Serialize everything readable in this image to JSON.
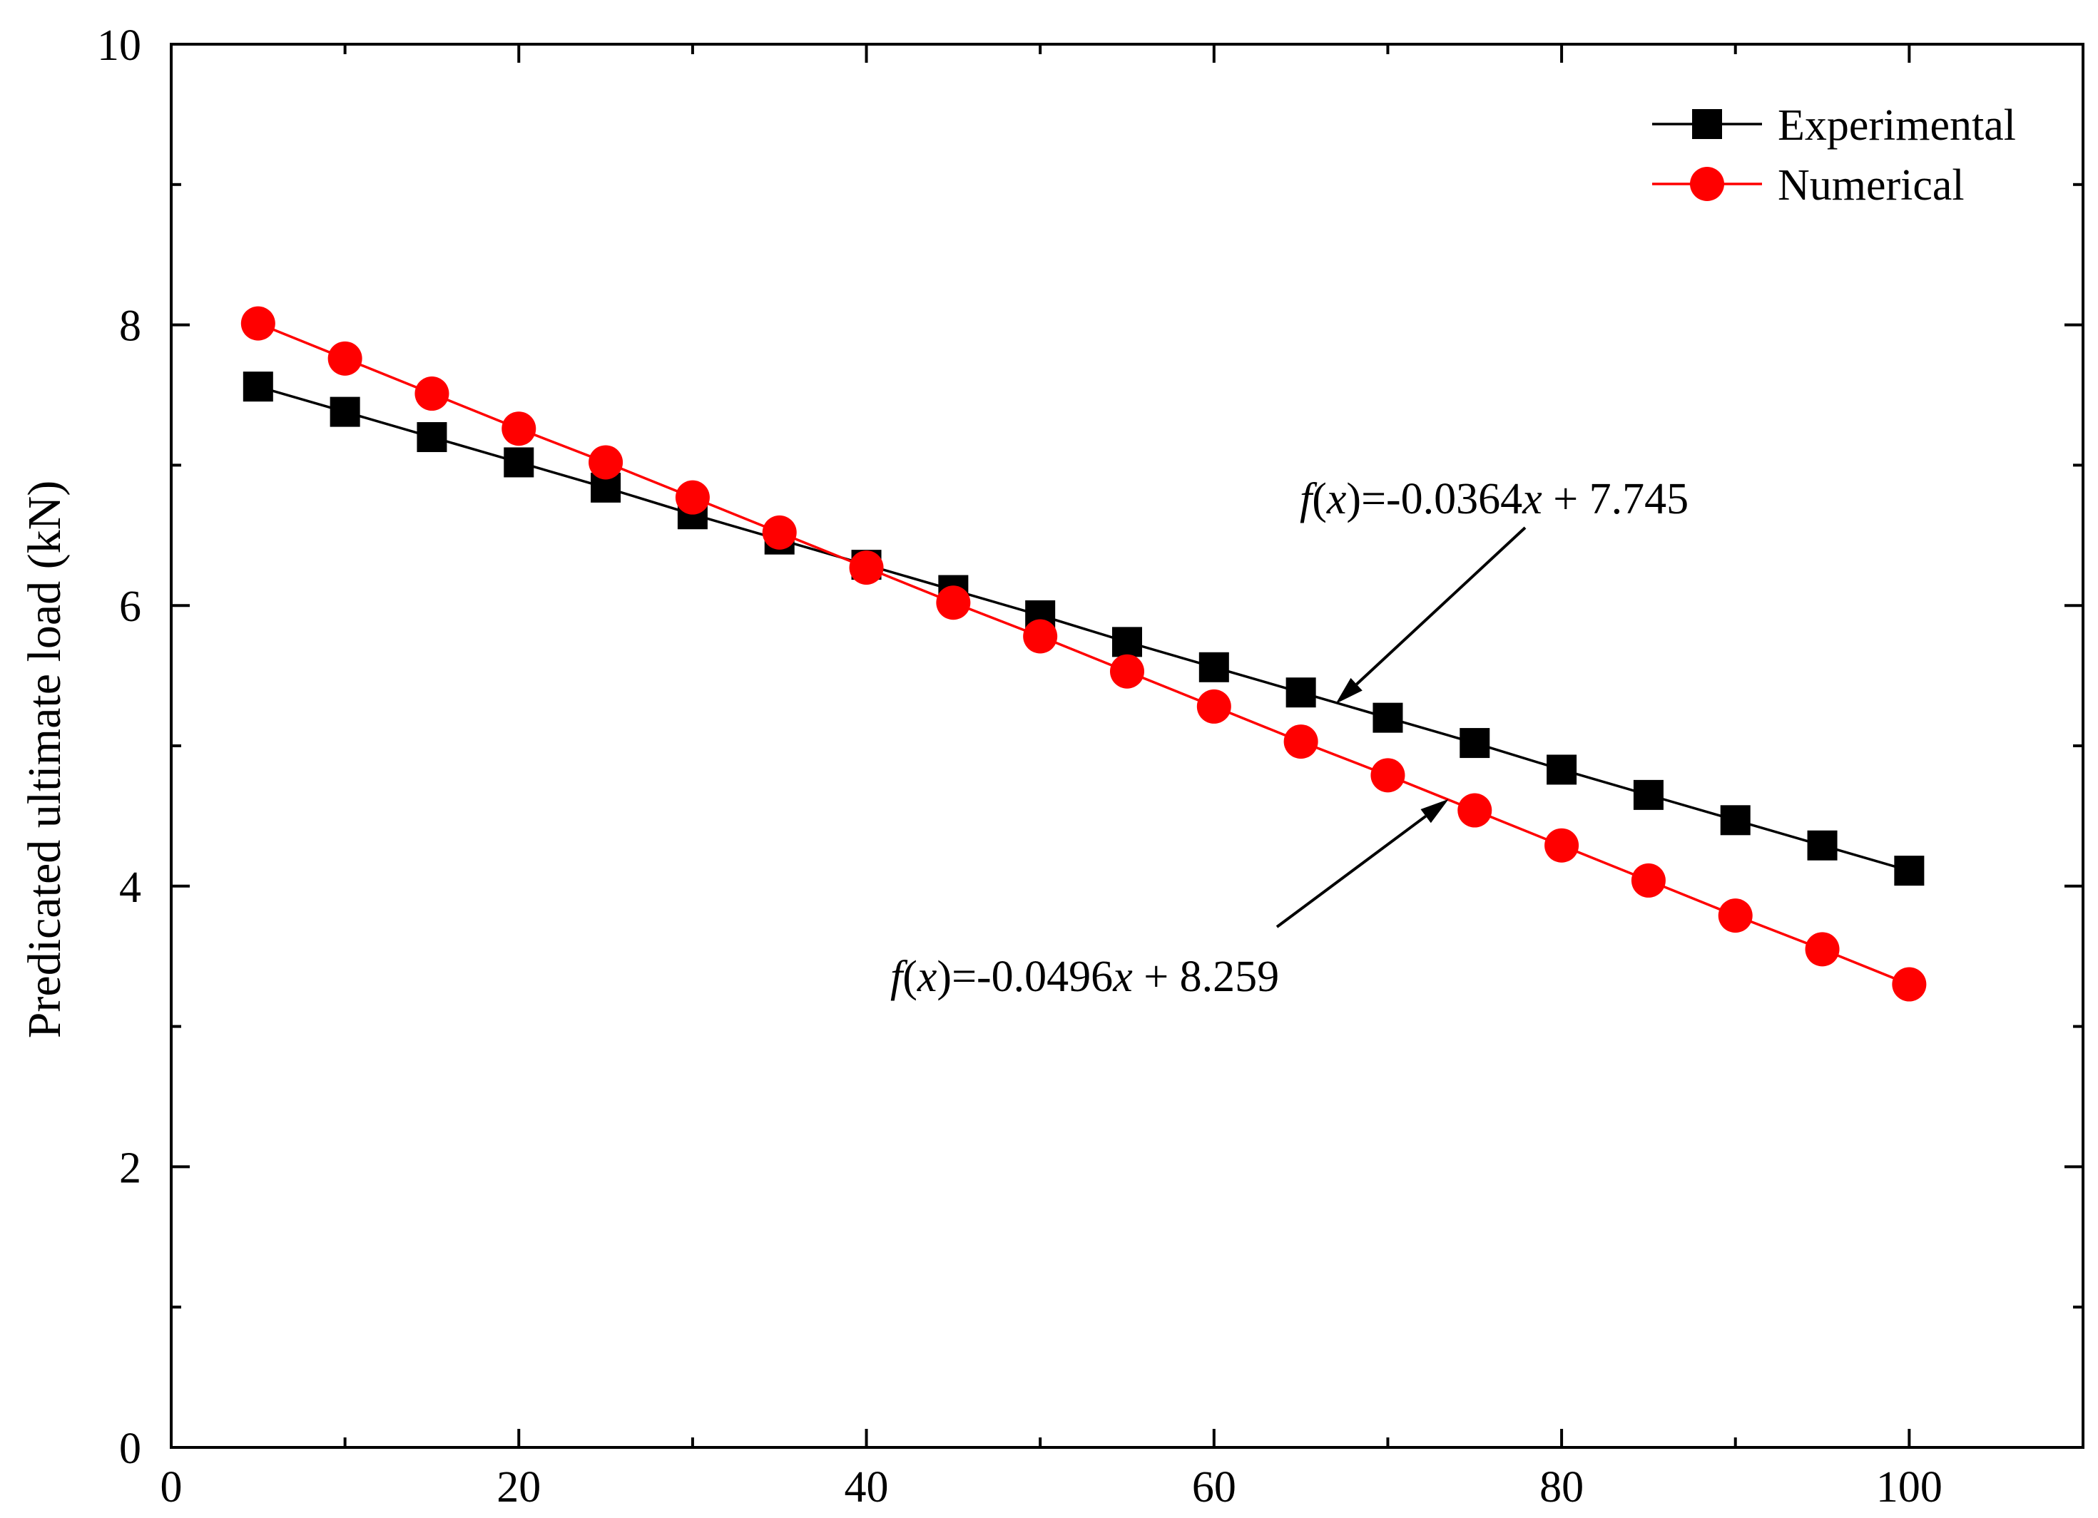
{
  "chart_data": {
    "type": "line",
    "title": "",
    "xlabel": "",
    "ylabel": "Predicated ultimate load (kN)",
    "xlim": [
      0,
      110
    ],
    "ylim": [
      0,
      10
    ],
    "x_ticks": [
      0,
      20,
      40,
      60,
      80,
      100
    ],
    "y_ticks": [
      0,
      2,
      4,
      6,
      8,
      10
    ],
    "x_tick_labels": [
      "0",
      "20",
      "40",
      "60",
      "80",
      "100"
    ],
    "y_tick_labels": [
      "0",
      "2",
      "4",
      "6",
      "8",
      "10"
    ],
    "grid": false,
    "legend_position": "top-right",
    "x": [
      5,
      10,
      15,
      20,
      25,
      30,
      35,
      40,
      45,
      50,
      55,
      60,
      65,
      70,
      75,
      80,
      85,
      90,
      95,
      100
    ],
    "series": [
      {
        "name": "Experimental",
        "color": "#000000",
        "marker": "square",
        "values": [
          7.56,
          7.38,
          7.2,
          7.02,
          6.84,
          6.65,
          6.47,
          6.29,
          6.11,
          5.93,
          5.74,
          5.56,
          5.38,
          5.2,
          5.02,
          4.83,
          4.65,
          4.47,
          4.29,
          4.11
        ]
      },
      {
        "name": "Numerical",
        "color": "#ff0000",
        "marker": "circle",
        "values": [
          8.01,
          7.76,
          7.51,
          7.26,
          7.02,
          6.77,
          6.52,
          6.27,
          6.02,
          5.78,
          5.53,
          5.28,
          5.03,
          4.79,
          4.54,
          4.29,
          4.04,
          3.79,
          3.55,
          3.3
        ]
      }
    ],
    "annotations": [
      {
        "id": "exp-eq",
        "text": "f(x)=-0.0364x + 7.745",
        "italic_parts": [
          "f",
          "x",
          "x"
        ],
        "arrow_target": [
          67,
          5.3
        ]
      },
      {
        "id": "num-eq",
        "text": "f(x)=-0.0496x + 8.259",
        "italic_parts": [
          "f",
          "x",
          "x"
        ],
        "arrow_target": [
          73.5,
          4.62
        ]
      }
    ]
  }
}
